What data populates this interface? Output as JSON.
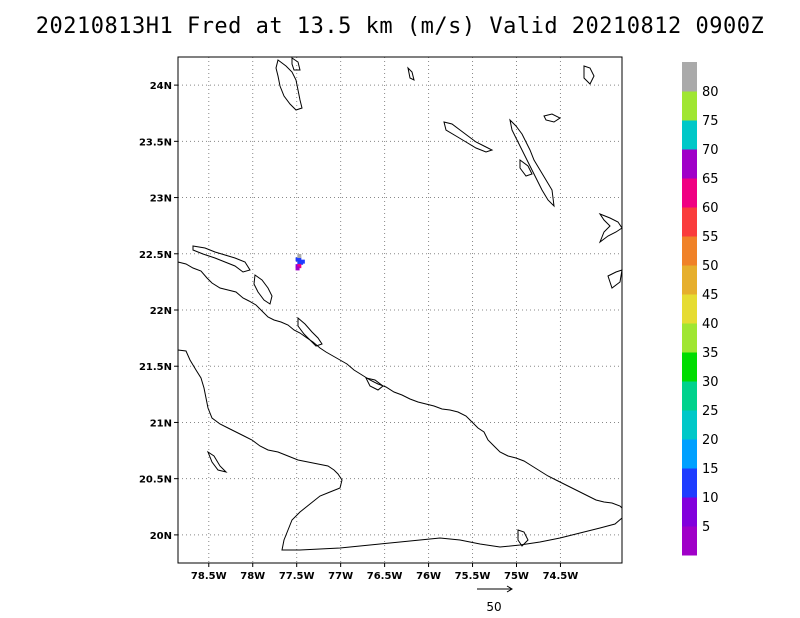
{
  "title": "20210813H1 Fred at 13.5 km (m/s) Valid 20210812 0900Z",
  "map": {
    "lon_range": [
      -78.85,
      -73.8
    ],
    "lat_range": [
      19.75,
      24.25
    ],
    "grid": true,
    "lon_ticks": [
      {
        "value": -78.5,
        "label": "78.5W"
      },
      {
        "value": -78.0,
        "label": "78W"
      },
      {
        "value": -77.5,
        "label": "77.5W"
      },
      {
        "value": -77.0,
        "label": "77W"
      },
      {
        "value": -76.5,
        "label": "76.5W"
      },
      {
        "value": -76.0,
        "label": "76W"
      },
      {
        "value": -75.5,
        "label": "75.5W"
      },
      {
        "value": -75.0,
        "label": "75W"
      },
      {
        "value": -74.5,
        "label": "74.5W"
      }
    ],
    "lat_ticks": [
      {
        "value": 20.0,
        "label": "20N"
      },
      {
        "value": 20.5,
        "label": "20.5N"
      },
      {
        "value": 21.0,
        "label": "21N"
      },
      {
        "value": 21.5,
        "label": "21.5N"
      },
      {
        "value": 22.0,
        "label": "22N"
      },
      {
        "value": 22.5,
        "label": "22.5N"
      },
      {
        "value": 23.0,
        "label": "23N"
      },
      {
        "value": 23.5,
        "label": "23.5N"
      },
      {
        "value": 24.0,
        "label": "24N"
      }
    ]
  },
  "colorbar": {
    "colors": [
      "#a000c8",
      "#8200dc",
      "#1e3cff",
      "#00a0ff",
      "#00c8c8",
      "#00d28c",
      "#00dc00",
      "#a0e632",
      "#e6dc32",
      "#e6af2d",
      "#f08228",
      "#fa3c3c",
      "#f00082",
      "#a000c8",
      "#00c8c8",
      "#a0e632",
      "#aaaaaa"
    ],
    "labels": [
      "5",
      "10",
      "15",
      "20",
      "25",
      "30",
      "35",
      "40",
      "45",
      "50",
      "55",
      "60",
      "65",
      "70",
      "75",
      "80"
    ]
  },
  "wind_pixels": [
    {
      "lon": -77.47,
      "lat": 22.42,
      "color": "#1e3cff"
    },
    {
      "lon": -77.45,
      "lat": 22.42,
      "color": "#1e3cff"
    },
    {
      "lon": -77.43,
      "lat": 22.43,
      "color": "#1e3cff"
    },
    {
      "lon": -77.47,
      "lat": 22.45,
      "color": "#1e3cff"
    },
    {
      "lon": -77.49,
      "lat": 22.45,
      "color": "#1e3cff"
    },
    {
      "lon": -77.49,
      "lat": 22.39,
      "color": "#8200dc"
    },
    {
      "lon": -77.47,
      "lat": 22.39,
      "color": "#f00082"
    },
    {
      "lon": -77.49,
      "lat": 22.37,
      "color": "#a000c8"
    },
    {
      "lon": -77.47,
      "lat": 22.48,
      "color": "#aaaaaa"
    }
  ],
  "reference_vector": {
    "label": "50"
  }
}
